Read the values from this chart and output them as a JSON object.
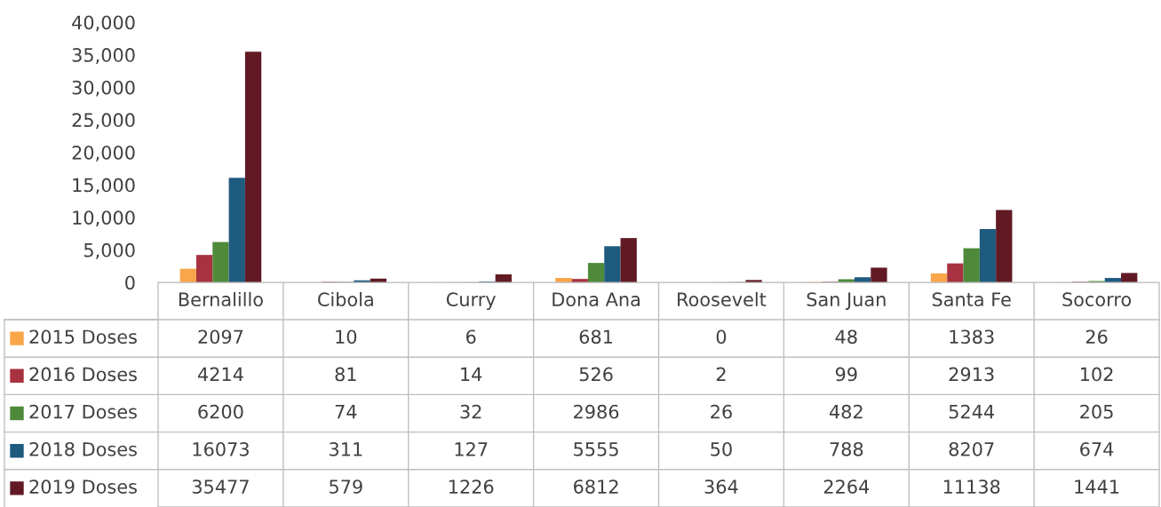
{
  "chart_data": {
    "type": "bar",
    "categories": [
      "Bernalillo",
      "Cibola",
      "Curry",
      "Dona Ana",
      "Roosevelt",
      "San Juan",
      "Santa Fe",
      "Socorro"
    ],
    "series": [
      {
        "name": "2015 Doses",
        "color": "#f9a54a",
        "values": [
          2097,
          10,
          6,
          681,
          0,
          48,
          1383,
          26
        ]
      },
      {
        "name": "2016 Doses",
        "color": "#a8323f",
        "values": [
          4214,
          81,
          14,
          526,
          2,
          99,
          2913,
          102
        ]
      },
      {
        "name": "2017 Doses",
        "color": "#4f8a3b",
        "values": [
          6200,
          74,
          32,
          2986,
          26,
          482,
          5244,
          205
        ]
      },
      {
        "name": "2018 Doses",
        "color": "#1f5a7f",
        "values": [
          16073,
          311,
          127,
          5555,
          50,
          788,
          8207,
          674
        ]
      },
      {
        "name": "2019 Doses",
        "color": "#611a24",
        "values": [
          35477,
          579,
          1226,
          6812,
          364,
          2264,
          11138,
          1441
        ]
      }
    ],
    "ylim": [
      0,
      40000
    ],
    "yticks": [
      0,
      {
        "value": 5000,
        "label": "5,000"
      },
      {
        "value": 10000,
        "label": "10,000"
      },
      {
        "value": 15000,
        "label": "15,000"
      },
      {
        "value": 20000,
        "label": "20,000"
      },
      {
        "value": 25000,
        "label": "25,000"
      },
      {
        "value": 30000,
        "label": "30,000"
      },
      {
        "value": 35000,
        "label": "35,000"
      },
      {
        "value": 40000,
        "label": "40,000"
      }
    ],
    "grid": false,
    "legend": "bottom",
    "data_labels": true
  }
}
